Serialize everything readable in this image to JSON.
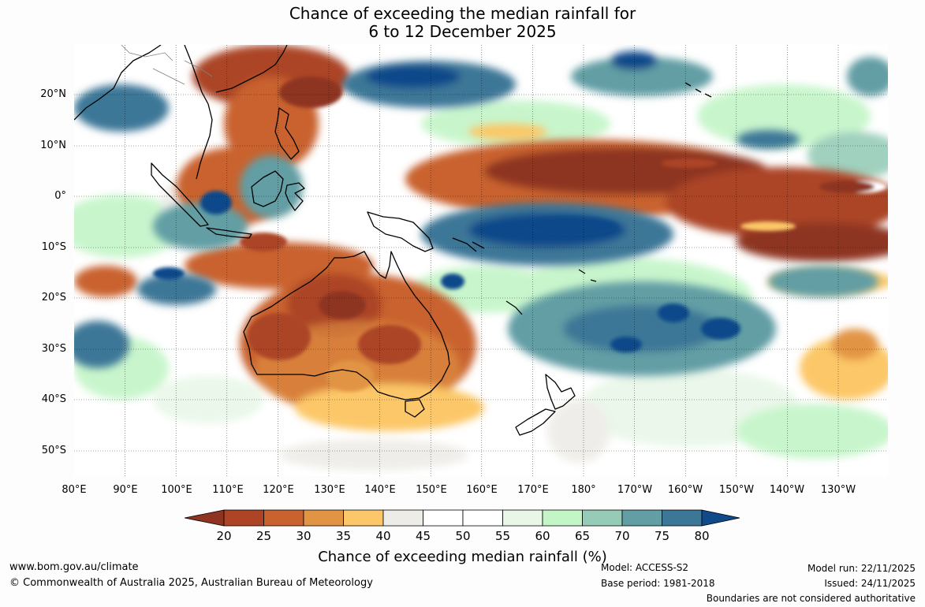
{
  "title": {
    "line1": "Chance of exceeding the median rainfall for",
    "line2": "6 to 12 December 2025"
  },
  "map": {
    "lat_labels": [
      "20°N",
      "10°N",
      "0°",
      "10°S",
      "20°S",
      "30°S",
      "40°S",
      "50°S"
    ],
    "lon_labels": [
      "80°E",
      "90°E",
      "100°E",
      "110°E",
      "120°E",
      "130°E",
      "140°E",
      "150°E",
      "160°E",
      "170°E",
      "180°",
      "170°W",
      "160°W",
      "150°W",
      "140°W",
      "130°W"
    ]
  },
  "colorbar": {
    "ticks": [
      "20",
      "25",
      "30",
      "35",
      "40",
      "45",
      "50",
      "55",
      "60",
      "65",
      "70",
      "75",
      "80"
    ],
    "label": "Chance of exceeding median rainfall (%)",
    "colors": [
      "#8e3420",
      "#ac4425",
      "#c9622f",
      "#e29445",
      "#fcc768",
      "#eeece7",
      "#ffffff",
      "#ffffff",
      "#e8f7e8",
      "#c3f5c7",
      "#96ccb7",
      "#629ea4",
      "#3c7797",
      "#114a8a"
    ]
  },
  "footer": {
    "url": "www.bom.gov.au/climate",
    "copyright": "© Commonwealth of Australia 2025, Australian Bureau of Meteorology",
    "model": "Model: ACCESS-S2",
    "base_period": "Base period: 1981-2018",
    "model_run": "Model run: 22/11/2025",
    "issued": "Issued: 24/11/2025",
    "boundaries": "Boundaries are not considered authoritative"
  }
}
